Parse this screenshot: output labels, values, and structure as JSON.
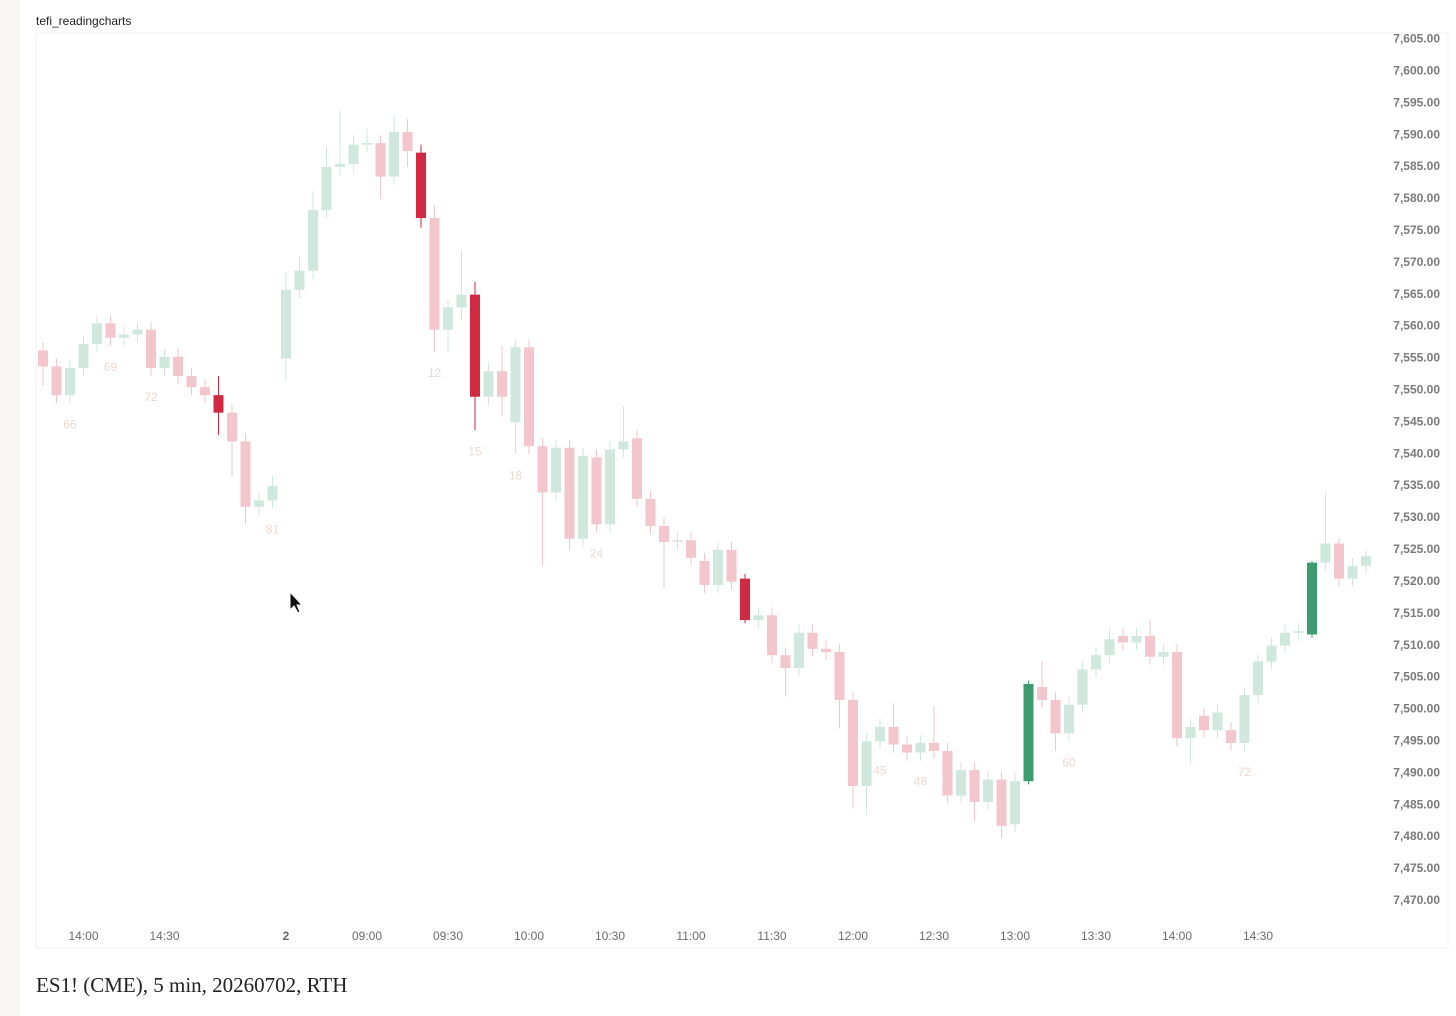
{
  "header": {
    "title": "tefi_readingcharts"
  },
  "caption": "ES1! (CME), 5 min, 20260702, RTH",
  "chart_data": {
    "type": "candlestick",
    "categories": [
      null,
      null,
      null,
      "14:00",
      null,
      null,
      null,
      null,
      null,
      "14:30",
      null,
      null,
      null,
      null,
      null,
      null,
      null,
      null,
      "2",
      null,
      null,
      null,
      null,
      null,
      "09:00",
      null,
      null,
      null,
      null,
      null,
      "09:30",
      null,
      null,
      null,
      null,
      null,
      "10:00",
      null,
      null,
      null,
      null,
      null,
      "10:30",
      null,
      null,
      null,
      null,
      null,
      "11:00",
      null,
      null,
      null,
      null,
      null,
      "11:30",
      null,
      null,
      null,
      null,
      null,
      "12:00",
      null,
      null,
      null,
      null,
      null,
      "12:30",
      null,
      null,
      null,
      null,
      null,
      "13:00",
      null,
      null,
      null,
      null,
      null,
      "13:30",
      null,
      null,
      null,
      null,
      null,
      "14:00",
      null,
      null,
      null,
      null,
      null,
      "14:30",
      null,
      null,
      null,
      null,
      null,
      null,
      null,
      null
    ],
    "open": [
      7556.25,
      7553.75,
      7549.25,
      7553.5,
      7557.25,
      7560.5,
      7558.25,
      7558.75,
      7559.5,
      7553.5,
      7555.25,
      7552.25,
      7550.5,
      7549.25,
      7546.5,
      7542,
      7531.75,
      7532.75,
      7555,
      7565.75,
      7568.75,
      7578.25,
      7585,
      7585.5,
      7588.5,
      7588.75,
      7583.5,
      7590.5,
      7587.25,
      7577,
      7559.5,
      7563,
      7565,
      7549,
      7553,
      7545,
      7556.75,
      7541.25,
      7534,
      7541,
      7526.75,
      7539.5,
      7529,
      7540.75,
      7542.5,
      7533,
      7528.75,
      7526.25,
      7526.5,
      7523.25,
      7519.5,
      7525,
      7520.5,
      7514,
      7514.75,
      7508.5,
      7506.5,
      7512,
      7509.5,
      7509,
      7501.5,
      7488,
      7495,
      7497.25,
      7494.5,
      7493.25,
      7494.75,
      7493.5,
      7486.5,
      7490.5,
      7485.5,
      7489,
      7482,
      7488.75,
      7503.5,
      7501.5,
      7496.25,
      7500.75,
      7506.25,
      7508.5,
      7511.5,
      7510.5,
      7511.5,
      7508.25,
      7509,
      7495.5,
      7499,
      7496.75,
      7496.75,
      7494.75,
      7502.25,
      7507.5,
      7510,
      7512,
      7511.75,
      7523,
      7526,
      7520.5,
      7522.5
    ],
    "high": [
      7557.5,
      7555,
      7554.75,
      7558.5,
      7561.75,
      7561.75,
      7560,
      7560.75,
      7560.75,
      7556.5,
      7556.5,
      7553.5,
      7551.75,
      7552.25,
      7547.75,
      7543.25,
      7534,
      7536.5,
      7568.5,
      7571,
      7581.25,
      7588.25,
      7593.75,
      7590,
      7591,
      7590,
      7593,
      7592.5,
      7588.5,
      7579,
      7564.25,
      7572,
      7567,
      7554.25,
      7557,
      7558,
      7558,
      7542.5,
      7542.25,
      7542.25,
      7541,
      7540.75,
      7542,
      7547.5,
      7543.75,
      7534.25,
      7530,
      7527.75,
      7527.75,
      7524.5,
      7526.25,
      7526.25,
      7521.25,
      7516,
      7516,
      7509.75,
      7513.25,
      7513.25,
      7510.75,
      7510.25,
      7502.75,
      7496.25,
      7498.5,
      7501,
      7495.75,
      7496,
      7500.5,
      7494.75,
      7491.75,
      7491.75,
      7490.25,
      7490.25,
      7490,
      7504.5,
      7507.5,
      7502.75,
      7502,
      7507.5,
      7509.75,
      7512.5,
      7512.75,
      7512.75,
      7514,
      7510.25,
      7510.25,
      7498.5,
      7500.25,
      7500.75,
      7498,
      7503.5,
      7508.75,
      7511.25,
      7513.25,
      7513.5,
      7523.25,
      7533.75,
      7526.75,
      7523.75,
      7525
    ],
    "low": [
      7550.75,
      7548,
      7548,
      7552.25,
      7556,
      7557,
      7557,
      7557.5,
      7552.25,
      7552.25,
      7551,
      7549.25,
      7548,
      7543,
      7536.5,
      7529,
      7530.5,
      7531.5,
      7551.5,
      7564.5,
      7567.5,
      7577,
      7583.75,
      7584.25,
      7587.25,
      7580,
      7582.25,
      7585,
      7575.5,
      7556,
      7556,
      7561,
      7543.75,
      7547.75,
      7546,
      7540,
      7540,
      7522.5,
      7532.75,
      7525,
      7525.5,
      7527.75,
      7527.75,
      7539.5,
      7531.75,
      7527.5,
      7519,
      7525,
      7522.5,
      7518.25,
      7518.25,
      7518.75,
      7513.5,
      7512.75,
      7507.25,
      7502,
      7505.25,
      7508.25,
      7507.75,
      7497,
      7484.5,
      7483.5,
      7493.75,
      7493.25,
      7492,
      7492,
      7492.25,
      7485.25,
      7485.25,
      7482.5,
      7484.25,
      7479.75,
      7480.75,
      7488.25,
      7500.25,
      7493.5,
      7495,
      7499.5,
      7505,
      7507.25,
      7509.25,
      7509.25,
      7507,
      7507,
      7494.25,
      7491.5,
      7495.5,
      7495.5,
      7493.5,
      7493.5,
      7501,
      7506.25,
      7508.75,
      7510.75,
      7511.25,
      7521.75,
      7519.25,
      7519.25,
      7521.25
    ],
    "close": [
      7553.75,
      7549.25,
      7553.5,
      7557.25,
      7560.5,
      7558.25,
      7558.75,
      7559.5,
      7553.5,
      7555.25,
      7552.25,
      7550.5,
      7549.25,
      7546.5,
      7542,
      7531.75,
      7532.75,
      7535,
      7565.75,
      7568.75,
      7578.25,
      7585,
      7585.5,
      7588.5,
      7588.75,
      7583.5,
      7590.5,
      7587.5,
      7577,
      7559.5,
      7563,
      7565,
      7549,
      7553,
      7549,
      7556.75,
      7541.25,
      7534,
      7541,
      7526.75,
      7539.75,
      7529,
      7540.75,
      7542,
      7533,
      7528.75,
      7526.25,
      7526.5,
      7523.75,
      7519.5,
      7525,
      7520,
      7514,
      7514.75,
      7508.5,
      7506.5,
      7512,
      7509.5,
      7509,
      7501.5,
      7488,
      7495,
      7497.25,
      7494.5,
      7493.25,
      7494.75,
      7493.5,
      7486.5,
      7490.5,
      7485.5,
      7489,
      7481.75,
      7488.75,
      7504,
      7501.5,
      7496.25,
      7500.75,
      7506.25,
      7508.5,
      7511,
      7510.5,
      7511.5,
      7508.25,
      7509,
      7495.5,
      7497.25,
      7496.75,
      7499.5,
      7494.75,
      7502.25,
      7507.5,
      7510,
      7512,
      7512.25,
      7523,
      7526,
      7520.5,
      7522.5,
      7524
    ],
    "highlighted": [
      13,
      28,
      32,
      52,
      73,
      94
    ],
    "colors": {
      "up": "#3e9b70",
      "down": "#d02a42",
      "up_faded": "#cfe7dc",
      "down_faded": "#f3c6cd",
      "annotation": "#ead9cf"
    },
    "annotations": [
      {
        "text": "66",
        "index": 2
      },
      {
        "text": "69",
        "index": 5
      },
      {
        "text": "72",
        "index": 8
      },
      {
        "text": "81",
        "index": 17
      },
      {
        "text": "12",
        "index": 29
      },
      {
        "text": "15",
        "index": 32
      },
      {
        "text": "18",
        "index": 35
      },
      {
        "text": "24",
        "index": 41
      },
      {
        "text": "45",
        "index": 62
      },
      {
        "text": "48",
        "index": 65
      },
      {
        "text": "60",
        "index": 76
      },
      {
        "text": "72",
        "index": 89
      }
    ],
    "ylim": [
      7467,
      7606
    ],
    "yticks": [
      {
        "value": 7605,
        "label": "7,605.00"
      },
      {
        "value": 7600,
        "label": "7,600.00"
      },
      {
        "value": 7595,
        "label": "7,595.00"
      },
      {
        "value": 7590,
        "label": "7,590.00"
      },
      {
        "value": 7585,
        "label": "7,585.00"
      },
      {
        "value": 7580,
        "label": "7,580.00"
      },
      {
        "value": 7575,
        "label": "7,575.00"
      },
      {
        "value": 7570,
        "label": "7,570.00"
      },
      {
        "value": 7565,
        "label": "7,565.00"
      },
      {
        "value": 7560,
        "label": "7,560.00"
      },
      {
        "value": 7555,
        "label": "7,555.00"
      },
      {
        "value": 7550,
        "label": "7,550.00"
      },
      {
        "value": 7545,
        "label": "7,545.00"
      },
      {
        "value": 7540,
        "label": "7,540.00"
      },
      {
        "value": 7535,
        "label": "7,535.00"
      },
      {
        "value": 7530,
        "label": "7,530.00"
      },
      {
        "value": 7525,
        "label": "7,525.00"
      },
      {
        "value": 7520,
        "label": "7,520.00"
      },
      {
        "value": 7515,
        "label": "7,515.00"
      },
      {
        "value": 7510,
        "label": "7,510.00"
      },
      {
        "value": 7505,
        "label": "7,505.00"
      },
      {
        "value": 7500,
        "label": "7,500.00"
      },
      {
        "value": 7495,
        "label": "7,495.00"
      },
      {
        "value": 7490,
        "label": "7,490.00"
      },
      {
        "value": 7485,
        "label": "7,485.00"
      },
      {
        "value": 7480,
        "label": "7,480.00"
      },
      {
        "value": 7475,
        "label": "7,475.00"
      },
      {
        "value": 7470,
        "label": "7,470.00"
      }
    ],
    "grid": false
  }
}
